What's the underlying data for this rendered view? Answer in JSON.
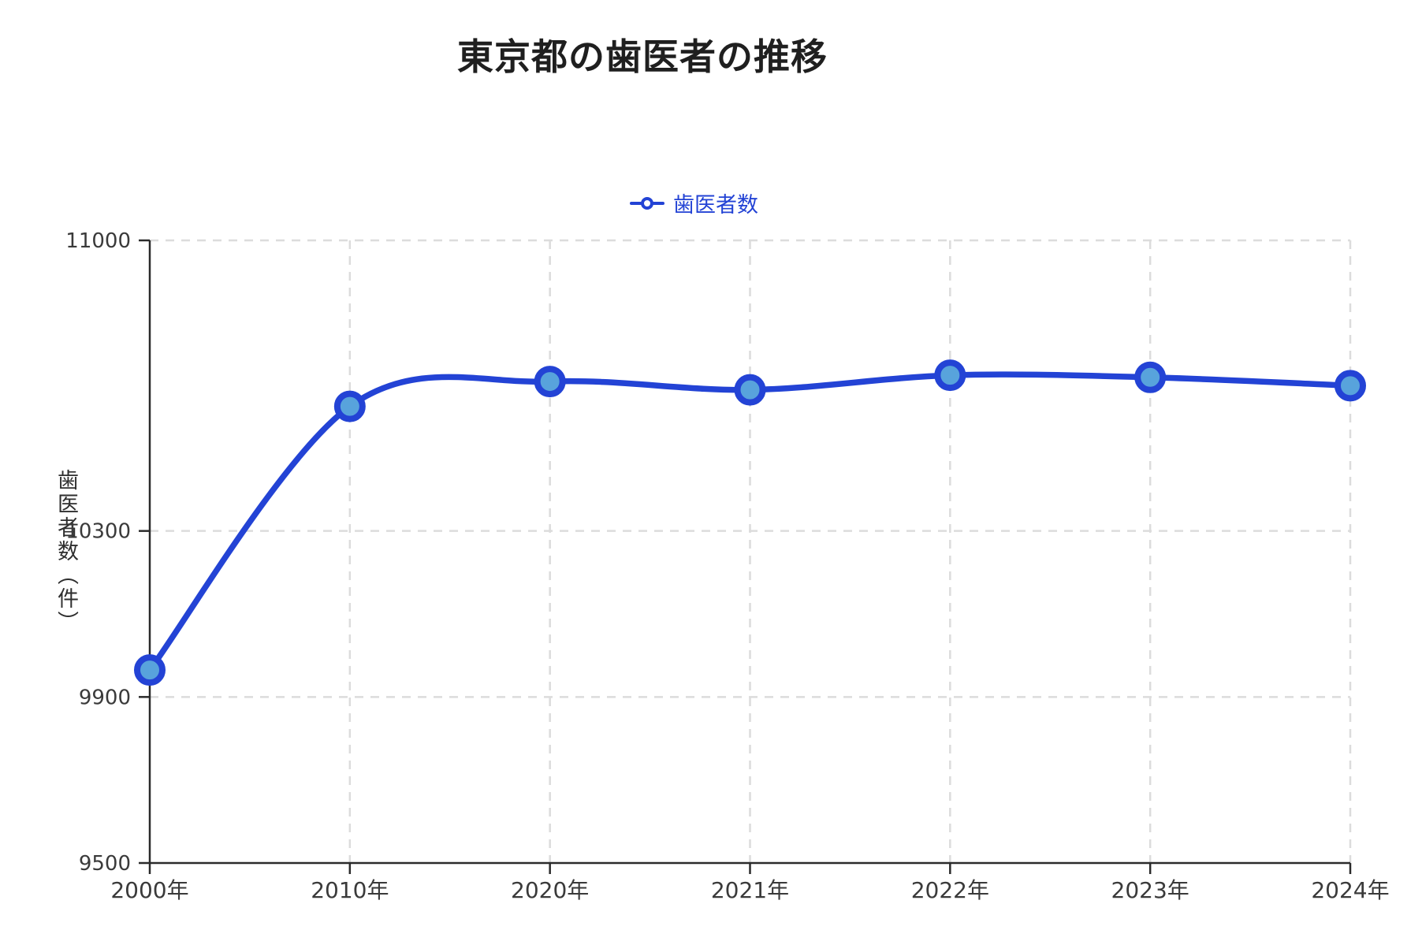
{
  "chart_data": {
    "type": "line",
    "title": "東京都の歯医者の推移",
    "ylabel": "歯医者数（件）",
    "xlabel": "",
    "categories": [
      "2000年",
      "2010年",
      "2020年",
      "2021年",
      "2022年",
      "2023年",
      "2024年"
    ],
    "series": [
      {
        "name": "歯医者数",
        "values": [
          9965,
          10600,
          10660,
          10640,
          10675,
          10670,
          10650
        ]
      }
    ],
    "ylim": [
      9500,
      11000
    ],
    "yticks": [
      9500,
      9900,
      10300,
      11000
    ],
    "grid": "dashed",
    "legend_position": "top-center",
    "colors": {
      "line": "#2343d5",
      "marker_fill": "#58a3dc",
      "marker_ring": "#2343d5",
      "grid": "#dcdcdc",
      "axis": "#2b2b2b",
      "tick_text": "#3a3a3a",
      "title_text": "#1f1f1f",
      "legend_text": "#2343d5"
    }
  }
}
